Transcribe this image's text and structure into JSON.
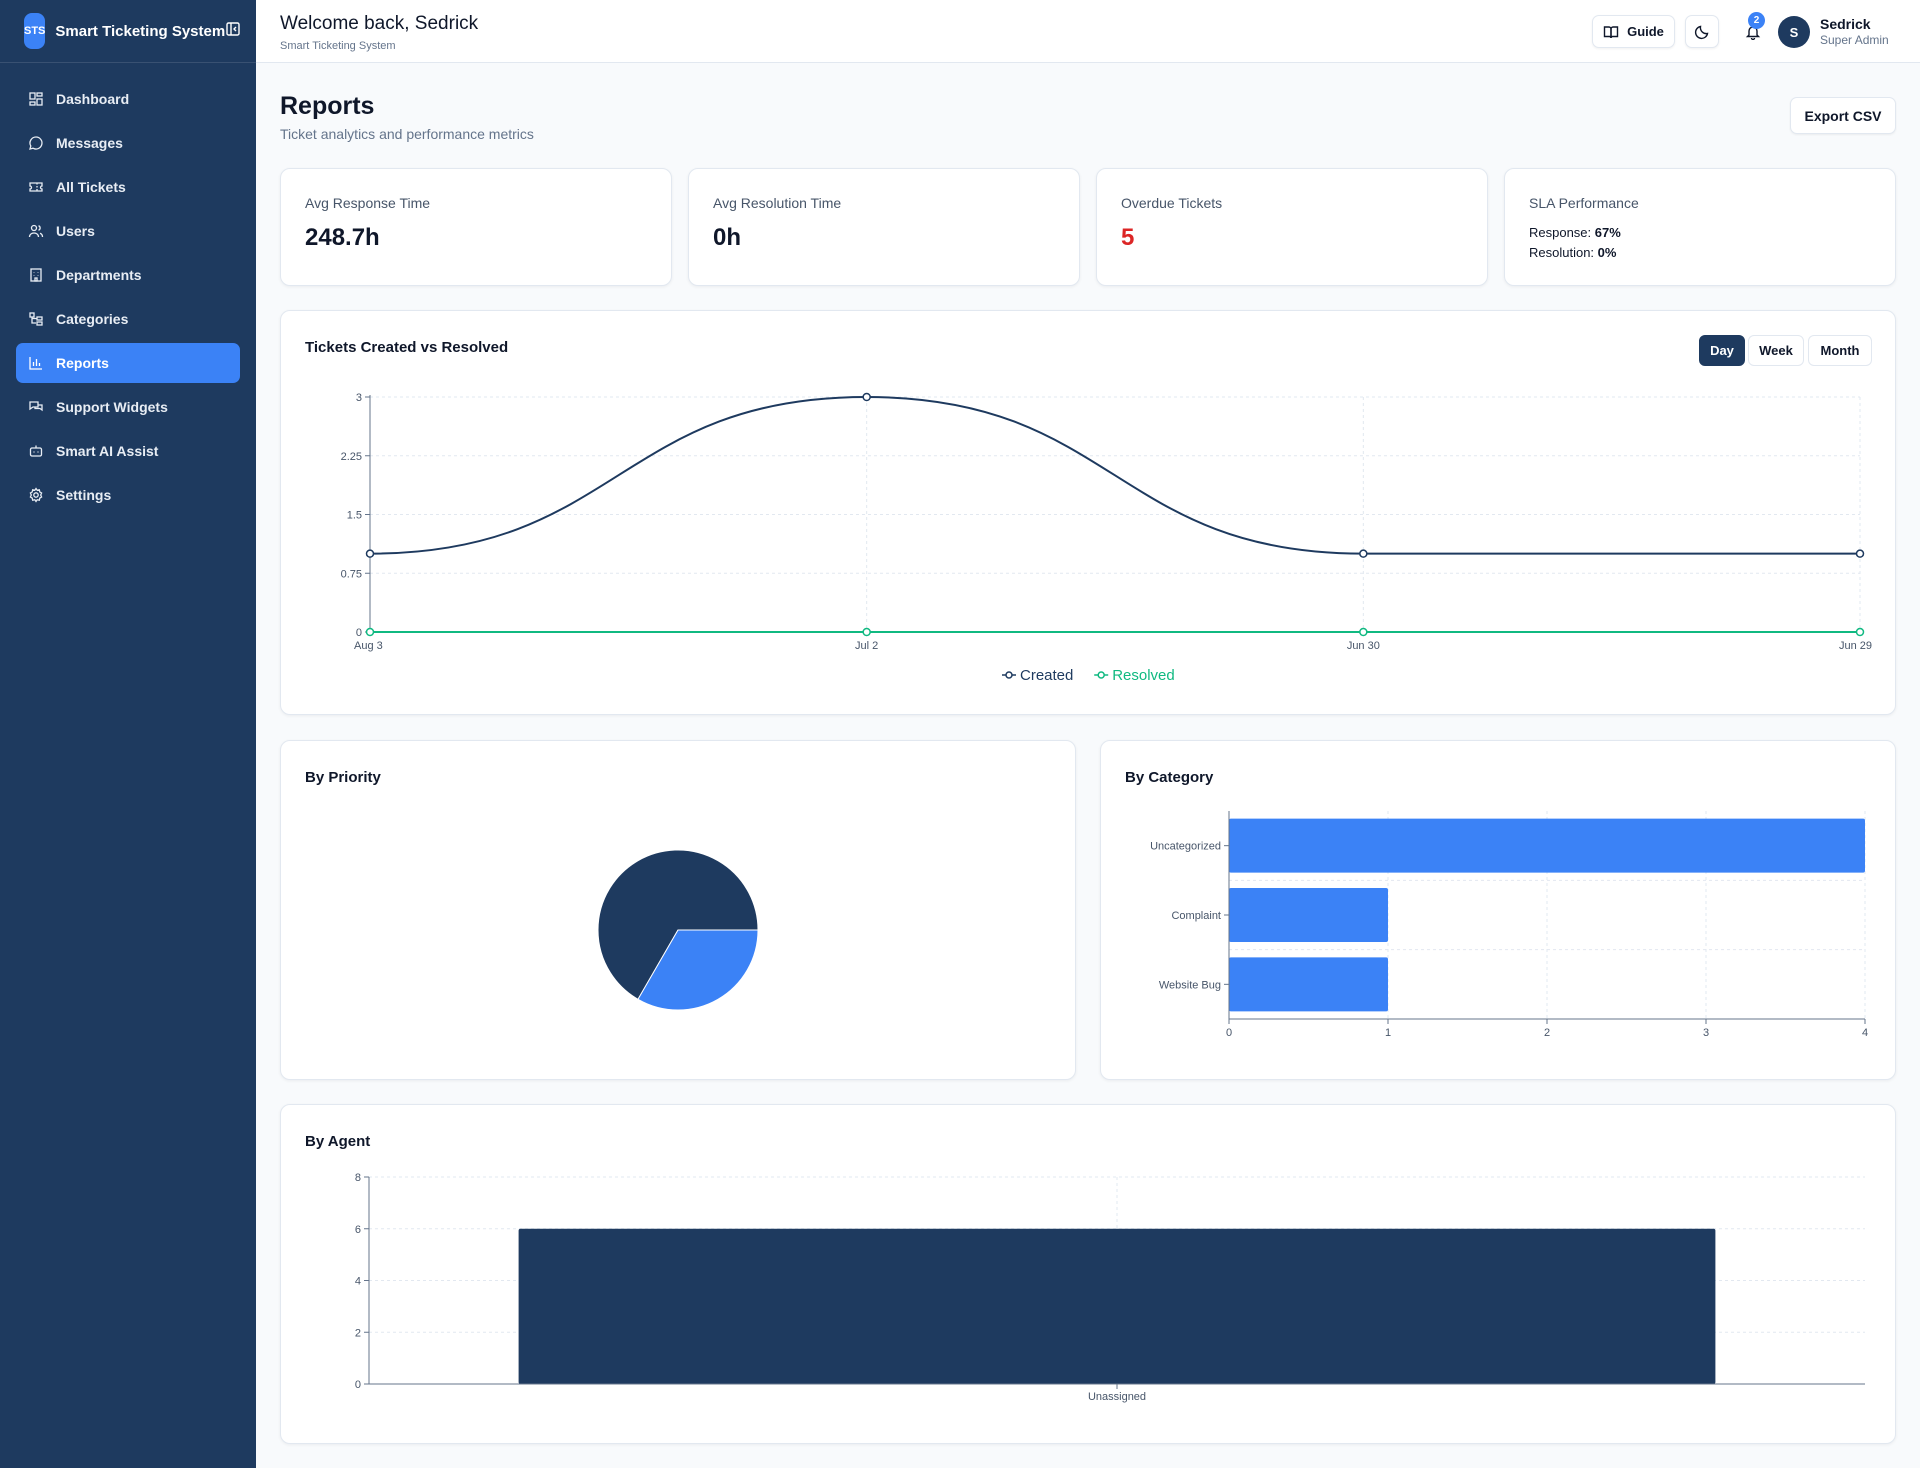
{
  "sidebar": {
    "logo": "STS",
    "title": "Smart Ticketing System",
    "items": [
      {
        "label": "Dashboard",
        "icon": "dashboard-icon"
      },
      {
        "label": "Messages",
        "icon": "message-icon"
      },
      {
        "label": "All Tickets",
        "icon": "ticket-icon"
      },
      {
        "label": "Users",
        "icon": "users-icon"
      },
      {
        "label": "Departments",
        "icon": "building-icon"
      },
      {
        "label": "Categories",
        "icon": "category-icon"
      },
      {
        "label": "Reports",
        "icon": "bar-chart-icon",
        "active": true
      },
      {
        "label": "Support Widgets",
        "icon": "chat-widget-icon"
      },
      {
        "label": "Smart AI Assist",
        "icon": "bot-icon"
      },
      {
        "label": "Settings",
        "icon": "gear-icon"
      }
    ]
  },
  "header": {
    "welcome": "Welcome back, Sedrick",
    "subtitle": "Smart Ticketing System",
    "guide_label": "Guide",
    "notification_count": "2",
    "avatar_initial": "S",
    "user_name": "Sedrick",
    "user_role": "Super Admin"
  },
  "page": {
    "title": "Reports",
    "subtitle": "Ticket analytics and performance metrics",
    "export_label": "Export CSV"
  },
  "stats": {
    "avg_response": {
      "label": "Avg Response Time",
      "value": "248.7h"
    },
    "avg_resolution": {
      "label": "Avg Resolution Time",
      "value": "0h"
    },
    "overdue": {
      "label": "Overdue Tickets",
      "value": "5"
    },
    "sla": {
      "label": "SLA Performance",
      "response_label": "Response:",
      "response_value": "67%",
      "resolution_label": "Resolution:",
      "resolution_value": "0%"
    }
  },
  "colors": {
    "primary": "#1e3a5f",
    "accent": "#3b82f6",
    "resolved": "#10b981",
    "danger": "#dc2626"
  },
  "charts": {
    "trend_title": "Tickets Created vs Resolved",
    "ranges": [
      "Day",
      "Week",
      "Month"
    ],
    "active_range": "Day",
    "priority_title": "By Priority",
    "category_title": "By Category",
    "agent_title": "By Agent"
  },
  "chart_data": [
    {
      "type": "line",
      "title": "Tickets Created vs Resolved",
      "x": [
        "Aug 3",
        "Jul 2",
        "Jun 30",
        "Jun 29"
      ],
      "series": [
        {
          "name": "Created",
          "values": [
            1,
            3,
            1,
            1
          ],
          "color": "#1e3a5f"
        },
        {
          "name": "Resolved",
          "values": [
            0,
            0,
            0,
            0
          ],
          "color": "#10b981"
        }
      ],
      "ylim": [
        0,
        3
      ],
      "yticks": [
        0,
        0.75,
        1.5,
        2.25,
        3
      ],
      "grid": true,
      "legend": "bottom"
    },
    {
      "type": "pie",
      "title": "By Priority",
      "values": [
        2,
        1
      ],
      "colors": [
        "#1e3a5f",
        "#3b82f6"
      ]
    },
    {
      "type": "bar",
      "orientation": "horizontal",
      "title": "By Category",
      "categories": [
        "Uncategorized",
        "Complaint",
        "Website Bug"
      ],
      "values": [
        4,
        1,
        1
      ],
      "xlim": [
        0,
        4
      ],
      "xticks": [
        0,
        1,
        2,
        3,
        4
      ],
      "color": "#3b82f6",
      "grid": true
    },
    {
      "type": "bar",
      "title": "By Agent",
      "categories": [
        "Unassigned"
      ],
      "values": [
        6
      ],
      "ylim": [
        0,
        8
      ],
      "yticks": [
        0,
        2,
        4,
        6,
        8
      ],
      "color": "#1e3a5f",
      "grid": true
    }
  ]
}
